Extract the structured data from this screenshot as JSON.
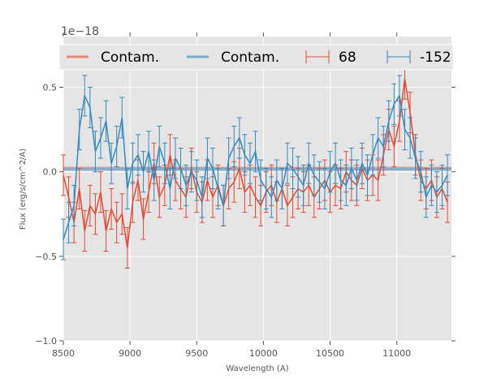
{
  "chart_data": {
    "type": "line",
    "title": "",
    "xlabel": "Wavelength (A)",
    "ylabel": "Flux (erg/s/cm^2/A)",
    "offset_text": "1e−18",
    "xlim": [
      8500,
      11410
    ],
    "ylim": [
      -1.0,
      0.8
    ],
    "xticks": [
      8500,
      9000,
      9500,
      10000,
      10500,
      11000
    ],
    "xtick_labels": [
      "8500",
      "9000",
      "9500",
      "10000",
      "10500",
      "11000"
    ],
    "yticks": [
      -1.0,
      -0.5,
      0.0,
      0.5
    ],
    "ytick_labels": [
      "−1.0",
      "−0.5",
      "0.0",
      "0.5"
    ],
    "grid": true,
    "legend": {
      "placement": "top",
      "entries": [
        {
          "label": "Contam.",
          "kind": "line",
          "color": "#e8887a"
        },
        {
          "label": "Contam.",
          "kind": "line",
          "color": "#7aaed0"
        },
        {
          "label": "68",
          "kind": "errorbar",
          "color": "#e24a33"
        },
        {
          "label": "-152",
          "kind": "errorbar",
          "color": "#348abd"
        }
      ]
    },
    "x_start": 8500,
    "x_step": 40,
    "series": [
      {
        "name": "68",
        "color": "#e24a33",
        "err": 0.12,
        "values": [
          -0.02,
          -0.15,
          -0.3,
          -0.1,
          -0.35,
          -0.2,
          -0.25,
          -0.12,
          -0.35,
          -0.22,
          -0.3,
          -0.25,
          -0.45,
          -0.18,
          -0.05,
          -0.28,
          -0.12,
          0.05,
          -0.15,
          -0.08,
          0.1,
          -0.05,
          -0.1,
          -0.15,
          0.02,
          -0.12,
          -0.18,
          -0.05,
          -0.15,
          -0.08,
          -0.2,
          -0.1,
          -0.06,
          0.02,
          -0.12,
          -0.08,
          -0.15,
          -0.2,
          -0.12,
          -0.08,
          -0.18,
          -0.1,
          -0.2,
          -0.15,
          -0.1,
          -0.12,
          -0.08,
          -0.15,
          -0.1,
          -0.05,
          -0.12,
          -0.08,
          -0.1,
          0.0,
          -0.05,
          -0.08,
          0.02,
          -0.05,
          -0.02,
          -0.05,
          0.1,
          0.25,
          0.15,
          0.3,
          0.55,
          0.35,
          0.1,
          -0.05,
          -0.1,
          -0.05,
          -0.15,
          -0.1,
          -0.18
        ]
      },
      {
        "name": "-152",
        "color": "#348abd",
        "err": 0.12,
        "values": [
          -0.4,
          -0.3,
          -0.2,
          0.25,
          0.45,
          0.38,
          0.12,
          0.2,
          0.3,
          0.05,
          0.15,
          0.32,
          -0.1,
          0.05,
          0.1,
          0.0,
          0.12,
          -0.05,
          0.15,
          0.05,
          -0.1,
          0.08,
          0.02,
          -0.08,
          0.0,
          -0.05,
          -0.15,
          0.08,
          0.02,
          -0.1,
          -0.2,
          0.08,
          0.15,
          0.2,
          0.1,
          0.05,
          0.12,
          -0.05,
          -0.1,
          -0.15,
          -0.05,
          -0.1,
          0.05,
          0.02,
          -0.03,
          -0.08,
          0.05,
          -0.02,
          -0.06,
          -0.1,
          0.0,
          0.05,
          -0.05,
          -0.08,
          0.02,
          -0.05,
          0.05,
          -0.02,
          0.1,
          0.2,
          0.15,
          0.3,
          0.4,
          0.45,
          0.25,
          0.2,
          0.08,
          0.0,
          -0.15,
          -0.08,
          -0.12,
          -0.08,
          -0.02
        ]
      },
      {
        "name": "Contam.",
        "color": "#e8887a",
        "values_const": 0.02
      },
      {
        "name": "Contam.",
        "color": "#7aaed0",
        "values_const": 0.015
      }
    ]
  }
}
